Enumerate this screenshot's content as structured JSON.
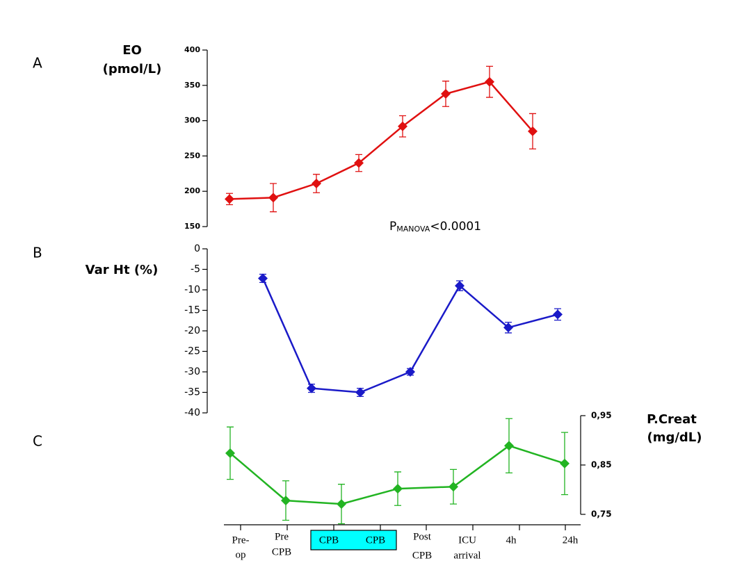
{
  "chart_data": [
    {
      "type": "line",
      "panel": "A",
      "y_label": [
        "EO",
        "(pmol/L)"
      ],
      "color": "#e01010",
      "values": [
        189,
        191,
        211,
        240,
        292,
        338,
        355,
        285
      ],
      "errors": [
        8,
        20,
        13,
        12,
        15,
        18,
        22,
        25
      ],
      "ylim": [
        150,
        400
      ],
      "yticks": [
        150,
        200,
        250,
        300,
        350,
        400
      ],
      "annotation": [
        "P",
        "MANOVA",
        "<0.0001"
      ]
    },
    {
      "type": "line",
      "panel": "B",
      "y_label": [
        "Var Ht (%)"
      ],
      "color": "#1a1ac8",
      "values": [
        -7.2,
        -34,
        -35,
        -30,
        -9,
        -19.2,
        -16
      ],
      "errors": [
        1,
        1,
        1,
        0.8,
        1.2,
        1.3,
        1.4
      ],
      "ylim": [
        -40,
        0
      ],
      "yticks": [
        0,
        -5,
        -10,
        -15,
        -20,
        -25,
        -30,
        -35,
        -40
      ]
    },
    {
      "type": "line",
      "panel": "C",
      "y_label": [
        "P.Creat",
        "(mg/dL)"
      ],
      "color": "#22b422",
      "axis_side": "right",
      "values": [
        0.874,
        0.778,
        0.771,
        0.802,
        0.806,
        0.889,
        0.853
      ],
      "errors": [
        0.053,
        0.04,
        0.04,
        0.034,
        0.035,
        0.055,
        0.063
      ],
      "ylim": [
        0.75,
        0.95
      ],
      "yticks": [
        {
          "value": 0.95,
          "label": "0,95"
        },
        {
          "value": 0.85,
          "label": "0,85"
        },
        {
          "value": 0.75,
          "label": "0,75"
        }
      ]
    }
  ],
  "timeline": [
    [
      "Pre-",
      "op"
    ],
    [
      "Pre",
      "CPB"
    ],
    [
      "CPB"
    ],
    [
      "CPB"
    ],
    [
      "Post",
      "CPB"
    ],
    [
      "ICU",
      "arrival"
    ],
    [
      "4h"
    ],
    [
      "24h"
    ]
  ]
}
